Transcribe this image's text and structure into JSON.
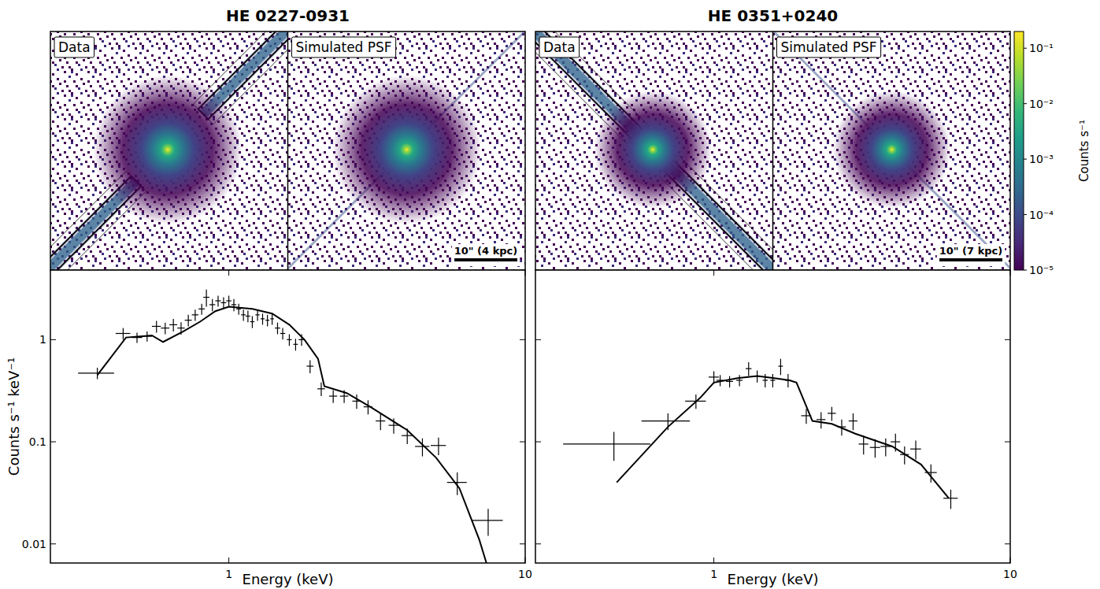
{
  "titles": [
    "HE 0227-0931",
    "HE 0351+0240"
  ],
  "image_panels": [
    {
      "data_label": "Data",
      "psf_label": "Simulated PSF",
      "scale_bar": "10\" (4 kpc)"
    },
    {
      "data_label": "Data",
      "psf_label": "Simulated PSF",
      "scale_bar": "10\" (7 kpc)"
    }
  ],
  "colorbar": {
    "label": "Counts s⁻¹",
    "log": true,
    "range": [
      1e-05,
      0.2
    ],
    "ticks": [
      {
        "value": 1e-05,
        "label": "10⁻⁵"
      },
      {
        "value": 0.0001,
        "label": "10⁻⁴"
      },
      {
        "value": 0.001,
        "label": "10⁻³"
      },
      {
        "value": 0.01,
        "label": "10⁻²"
      },
      {
        "value": 0.1,
        "label": "10⁻¹"
      }
    ]
  },
  "chart_data": [
    {
      "type": "scatter",
      "x_label": "Energy (keV)",
      "y_label": "Counts s⁻¹ keV⁻¹",
      "log": true,
      "xlim": [
        0.25,
        10
      ],
      "ylim": [
        0.0065,
        4.8
      ],
      "xticks": [
        1,
        10
      ],
      "yticks": [
        0.01,
        0.1,
        1
      ],
      "tick_labels": true,
      "series": [
        {
          "type": "scatter",
          "marker": "cross",
          "color": "#000000",
          "x": [
            0.36,
            0.44,
            0.49,
            0.53,
            0.57,
            0.61,
            0.65,
            0.69,
            0.73,
            0.77,
            0.81,
            0.84,
            0.88,
            0.92,
            0.96,
            1.0,
            1.04,
            1.08,
            1.12,
            1.16,
            1.2,
            1.25,
            1.3,
            1.35,
            1.4,
            1.46,
            1.52,
            1.6,
            1.68,
            1.76,
            1.88,
            2.05,
            2.25,
            2.45,
            2.7,
            2.95,
            3.25,
            3.6,
            4.0,
            4.5,
            5.1,
            5.9,
            7.5
          ],
          "values": [
            0.47,
            1.15,
            1.05,
            1.08,
            1.35,
            1.3,
            1.4,
            1.3,
            1.55,
            1.75,
            2.0,
            2.6,
            2.2,
            2.4,
            2.3,
            2.4,
            2.2,
            2.0,
            1.75,
            1.7,
            1.5,
            1.75,
            1.6,
            1.55,
            1.6,
            1.3,
            1.15,
            1.0,
            0.9,
            1.0,
            0.55,
            0.33,
            0.28,
            0.28,
            0.25,
            0.22,
            0.16,
            0.145,
            0.115,
            0.09,
            0.092,
            0.04,
            0.017
          ],
          "x_err": [
            0.05,
            0.025,
            0.02,
            0.02,
            0.02,
            0.02,
            0.02,
            0.02,
            0.02,
            0.02,
            0.02,
            0.02,
            0.02,
            0.02,
            0.02,
            0.02,
            0.02,
            0.02,
            0.02,
            0.02,
            0.02,
            0.02,
            0.02,
            0.02,
            0.02,
            0.03,
            0.03,
            0.03,
            0.03,
            0.04,
            0.05,
            0.06,
            0.07,
            0.08,
            0.09,
            0.1,
            0.12,
            0.14,
            0.17,
            0.25,
            0.3,
            0.45,
            0.9
          ],
          "y_err": [
            0.06,
            0.15,
            0.12,
            0.12,
            0.18,
            0.17,
            0.2,
            0.18,
            0.2,
            0.22,
            0.25,
            0.5,
            0.3,
            0.3,
            0.3,
            0.3,
            0.3,
            0.25,
            0.22,
            0.22,
            0.2,
            0.22,
            0.2,
            0.2,
            0.2,
            0.17,
            0.15,
            0.13,
            0.12,
            0.13,
            0.08,
            0.05,
            0.04,
            0.04,
            0.04,
            0.035,
            0.03,
            0.025,
            0.02,
            0.018,
            0.018,
            0.01,
            0.005
          ]
        },
        {
          "type": "line",
          "color": "#000000",
          "x": [
            0.36,
            0.45,
            0.55,
            0.6,
            0.7,
            0.8,
            0.9,
            1.0,
            1.2,
            1.4,
            1.6,
            1.8,
            2.0,
            2.1,
            2.5,
            3.0,
            4.0,
            5.0,
            6.0,
            7.0,
            7.4
          ],
          "values": [
            0.45,
            1.05,
            1.1,
            0.95,
            1.2,
            1.5,
            1.9,
            2.1,
            2.0,
            1.8,
            1.4,
            1.0,
            0.65,
            0.35,
            0.3,
            0.22,
            0.13,
            0.07,
            0.035,
            0.011,
            0.0065
          ]
        }
      ]
    },
    {
      "type": "scatter",
      "x_label": "Energy (keV)",
      "log": true,
      "xlim": [
        0.25,
        10
      ],
      "ylim": [
        0.0065,
        4.8
      ],
      "xticks": [
        1,
        10
      ],
      "yticks": [
        0.01,
        0.1,
        1
      ],
      "tick_labels": "x",
      "series": [
        {
          "type": "scatter",
          "marker": "cross",
          "color": "#000000",
          "x": [
            0.46,
            0.7,
            0.87,
            1.0,
            1.05,
            1.13,
            1.22,
            1.31,
            1.4,
            1.49,
            1.58,
            1.68,
            1.78,
            2.05,
            2.3,
            2.5,
            2.7,
            2.95,
            3.2,
            3.5,
            3.8,
            4.1,
            4.4,
            4.8,
            5.4,
            6.3
          ],
          "values": [
            0.095,
            0.16,
            0.25,
            0.43,
            0.4,
            0.39,
            0.4,
            0.52,
            0.44,
            0.4,
            0.4,
            0.55,
            0.4,
            0.18,
            0.165,
            0.19,
            0.14,
            0.16,
            0.095,
            0.088,
            0.09,
            0.1,
            0.075,
            0.085,
            0.05,
            0.028
          ],
          "x_err": [
            0.15,
            0.13,
            0.07,
            0.04,
            0.03,
            0.03,
            0.03,
            0.03,
            0.03,
            0.03,
            0.03,
            0.03,
            0.04,
            0.08,
            0.08,
            0.08,
            0.09,
            0.1,
            0.12,
            0.14,
            0.15,
            0.15,
            0.15,
            0.2,
            0.25,
            0.35
          ],
          "y_err": [
            0.03,
            0.03,
            0.04,
            0.06,
            0.05,
            0.05,
            0.05,
            0.08,
            0.06,
            0.06,
            0.06,
            0.1,
            0.06,
            0.03,
            0.03,
            0.03,
            0.025,
            0.03,
            0.02,
            0.018,
            0.018,
            0.02,
            0.015,
            0.018,
            0.01,
            0.006
          ]
        },
        {
          "type": "line",
          "color": "#000000",
          "x": [
            0.47,
            0.7,
            0.9,
            1.0,
            1.2,
            1.4,
            1.6,
            1.8,
            1.9,
            2.15,
            2.5,
            3.0,
            4.0,
            5.0,
            6.2
          ],
          "values": [
            0.04,
            0.14,
            0.27,
            0.38,
            0.42,
            0.44,
            0.42,
            0.4,
            0.38,
            0.16,
            0.15,
            0.12,
            0.09,
            0.06,
            0.028
          ]
        }
      ]
    }
  ]
}
